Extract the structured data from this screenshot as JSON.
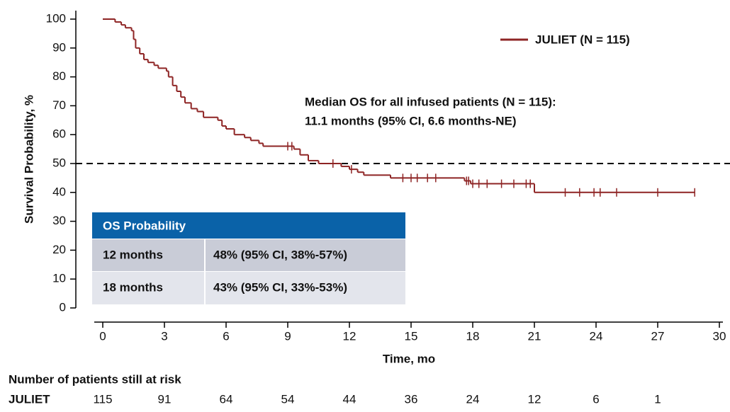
{
  "chart_data": {
    "type": "step",
    "legend": "JULIET (N = 115)",
    "legend_position": "upper right",
    "color": "#8e2424",
    "xlabel": "Time, mo",
    "ylabel": "Survival Probability, %",
    "xlim": [
      0,
      30
    ],
    "ylim": [
      0,
      100
    ],
    "xticks": [
      0,
      3,
      6,
      9,
      12,
      15,
      18,
      21,
      24,
      27,
      30
    ],
    "yticks": [
      0,
      10,
      20,
      30,
      40,
      50,
      60,
      70,
      80,
      90,
      100
    ],
    "x": [
      0,
      0.6,
      0.9,
      1.1,
      1.4,
      1.5,
      1.6,
      1.8,
      2.0,
      2.2,
      2.5,
      2.7,
      3.1,
      3.2,
      3.4,
      3.6,
      3.8,
      4.0,
      4.3,
      4.6,
      4.9,
      5.6,
      5.8,
      6.0,
      6.4,
      6.9,
      7.2,
      7.6,
      7.8,
      9.3,
      9.6,
      10.0,
      10.5,
      11.6,
      12.0,
      12.4,
      12.7,
      14.0,
      17.6,
      17.9,
      21.0,
      28.8
    ],
    "values": [
      100,
      99,
      98,
      97,
      96,
      93,
      90,
      88,
      86,
      85,
      84,
      83,
      82,
      80,
      77,
      75,
      73,
      71,
      69,
      68,
      66,
      65,
      63,
      62,
      60,
      59,
      58,
      57,
      56,
      55,
      53,
      51,
      50,
      49,
      48,
      47,
      46,
      45,
      44,
      43,
      40,
      40
    ],
    "censored": {
      "x": [
        9.0,
        9.2,
        11.2,
        12.1,
        14.6,
        15.0,
        15.3,
        15.8,
        16.2,
        17.7,
        17.8,
        18.0,
        18.3,
        18.7,
        19.4,
        20.0,
        20.6,
        20.8,
        22.5,
        23.2,
        23.9,
        24.2,
        25.0,
        27.0,
        28.8
      ],
      "values": [
        56,
        56,
        50,
        48,
        45,
        45,
        45,
        45,
        45,
        44,
        44,
        43,
        43,
        43,
        43,
        43,
        43,
        43,
        40,
        40,
        40,
        40,
        40,
        40,
        40
      ]
    },
    "reference_line": 50,
    "annotation": [
      "Median OS for all infused patients (N = 115):",
      "11.1 months (95% CI, 6.6 months-NE)"
    ],
    "os_table": {
      "header": "OS Probability",
      "rows": [
        [
          "12 months",
          "48% (95% CI, 38%-57%)"
        ],
        [
          "18 months",
          "43% (95% CI, 33%-53%)"
        ]
      ]
    },
    "risk_table": {
      "title": "Number of patients still at risk",
      "label": "JULIET",
      "values": [
        115,
        91,
        64,
        54,
        44,
        36,
        24,
        12,
        6,
        1
      ]
    }
  }
}
